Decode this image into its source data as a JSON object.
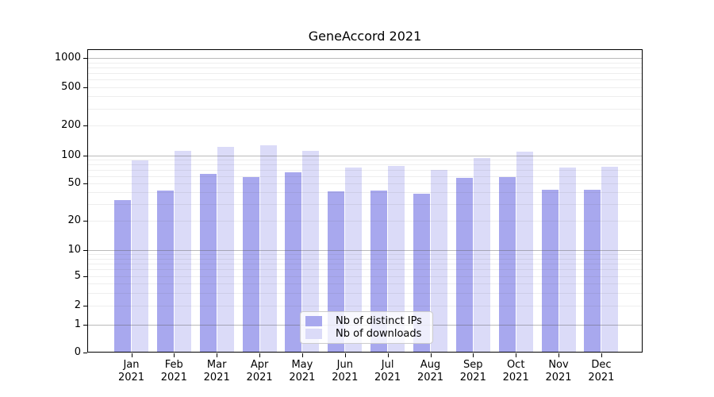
{
  "title": "GeneAccord 2021",
  "chart_data": {
    "type": "bar",
    "title": "GeneAccord 2021",
    "yscale": "symlog",
    "ylim": [
      0,
      1200
    ],
    "grid": "both",
    "legend_position": "lower-center",
    "y_ticks": [
      0,
      1,
      2,
      5,
      10,
      20,
      50,
      100,
      200,
      500,
      1000
    ],
    "categories": [
      "Jan",
      "Feb",
      "Mar",
      "Apr",
      "May",
      "Jun",
      "Jul",
      "Aug",
      "Sep",
      "Oct",
      "Nov",
      "Dec"
    ],
    "category_year": "2021",
    "series": [
      {
        "name": "Nb of distinct IPs",
        "color": "#a8a8ee",
        "values": [
          33,
          42,
          63,
          59,
          66,
          41,
          42,
          39,
          58,
          59,
          43,
          43
        ]
      },
      {
        "name": "Nb of downloads",
        "color": "#dbdbf8",
        "values": [
          89,
          111,
          123,
          126,
          112,
          75,
          77,
          70,
          95,
          109,
          74,
          76
        ]
      }
    ]
  }
}
